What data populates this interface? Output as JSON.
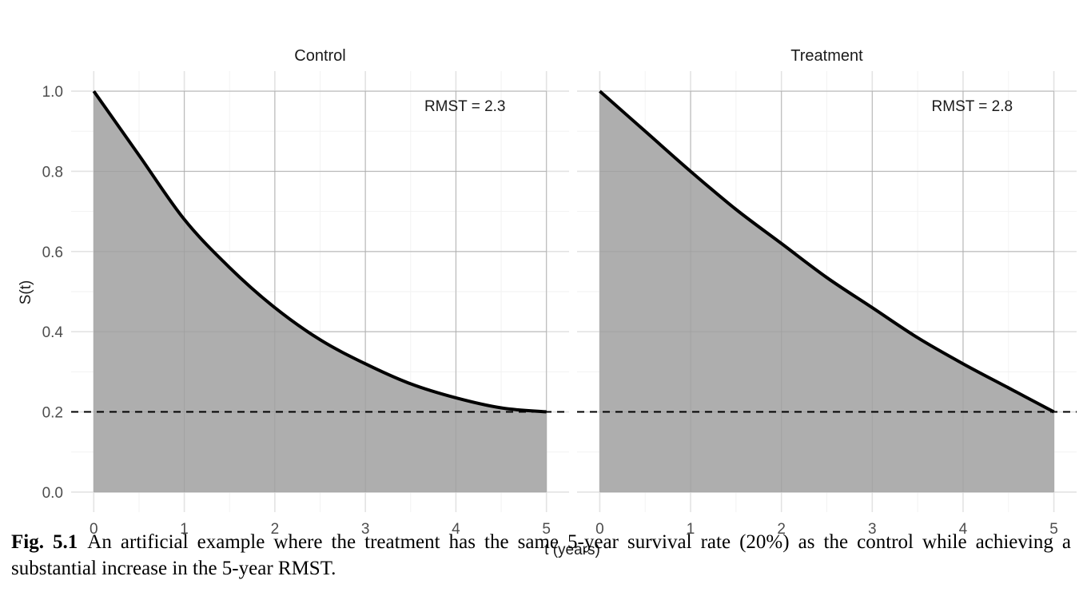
{
  "chart_data": {
    "type": "area",
    "xlabel": "t (years)",
    "ylabel": "S(t)",
    "xlim": [
      0,
      5
    ],
    "ylim": [
      0,
      1
    ],
    "x_ticks": [
      "0",
      "1",
      "2",
      "3",
      "4",
      "5"
    ],
    "y_ticks": [
      "0.0",
      "0.2",
      "0.4",
      "0.6",
      "0.8",
      "1.0"
    ],
    "grid": true,
    "reference_line": {
      "y": 0.2,
      "style": "dashed"
    },
    "fill_color": "#aaaaaa",
    "line_color": "#000000",
    "panels": [
      {
        "title": "Control",
        "annotation": "RMST = 2.3",
        "x": [
          0,
          0.5,
          1,
          1.5,
          2,
          2.5,
          3,
          3.5,
          4,
          4.5,
          5
        ],
        "y": [
          1.0,
          0.84,
          0.68,
          0.56,
          0.46,
          0.38,
          0.32,
          0.27,
          0.235,
          0.21,
          0.2
        ]
      },
      {
        "title": "Treatment",
        "annotation": "RMST = 2.8",
        "x": [
          0,
          0.5,
          1,
          1.5,
          2,
          2.5,
          3,
          3.5,
          4,
          4.5,
          5
        ],
        "y": [
          1.0,
          0.9,
          0.8,
          0.705,
          0.62,
          0.535,
          0.46,
          0.385,
          0.32,
          0.26,
          0.2
        ]
      }
    ]
  },
  "caption": {
    "label": "Fig. 5.1",
    "text": "An artificial example where the treatment has the same 5-year survival rate (20%) as the control while achieving a substantial increase in the 5-year RMST."
  }
}
